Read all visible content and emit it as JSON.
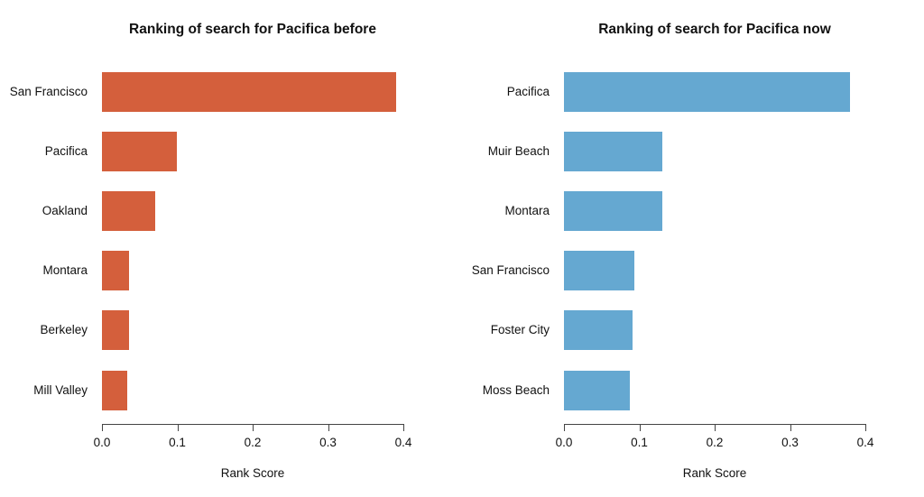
{
  "figure": {
    "background": "#ffffff",
    "text_color": "#111111",
    "axis_color": "#444444"
  },
  "chart_data": [
    {
      "type": "bar",
      "orientation": "horizontal",
      "title": "Ranking of search for Pacifica before",
      "categories": [
        "San Francisco",
        "Pacifica",
        "Oakland",
        "Montara",
        "Berkeley",
        "Mill Valley"
      ],
      "values": [
        0.39,
        0.099,
        0.071,
        0.036,
        0.036,
        0.033
      ],
      "xlabel": "Rank Score",
      "xlim": [
        0.0,
        0.4
      ],
      "xticks": [
        0.0,
        0.1,
        0.2,
        0.3,
        0.4
      ],
      "xtick_labels": [
        "0.0",
        "0.1",
        "0.2",
        "0.3",
        "0.4"
      ],
      "bar_color": "#d45f3c",
      "grid": false,
      "legend": "none"
    },
    {
      "type": "bar",
      "orientation": "horizontal",
      "title": "Ranking of search for Pacifica now",
      "categories": [
        "Pacifica",
        "Muir Beach",
        "Montara",
        "San Francisco",
        "Foster City",
        "Moss Beach"
      ],
      "values": [
        0.38,
        0.131,
        0.131,
        0.094,
        0.091,
        0.087
      ],
      "xlabel": "Rank Score",
      "xlim": [
        0.0,
        0.4
      ],
      "xticks": [
        0.0,
        0.1,
        0.2,
        0.3,
        0.4
      ],
      "xtick_labels": [
        "0.0",
        "0.1",
        "0.2",
        "0.3",
        "0.4"
      ],
      "bar_color": "#65a8d1",
      "grid": false,
      "legend": "none"
    }
  ]
}
